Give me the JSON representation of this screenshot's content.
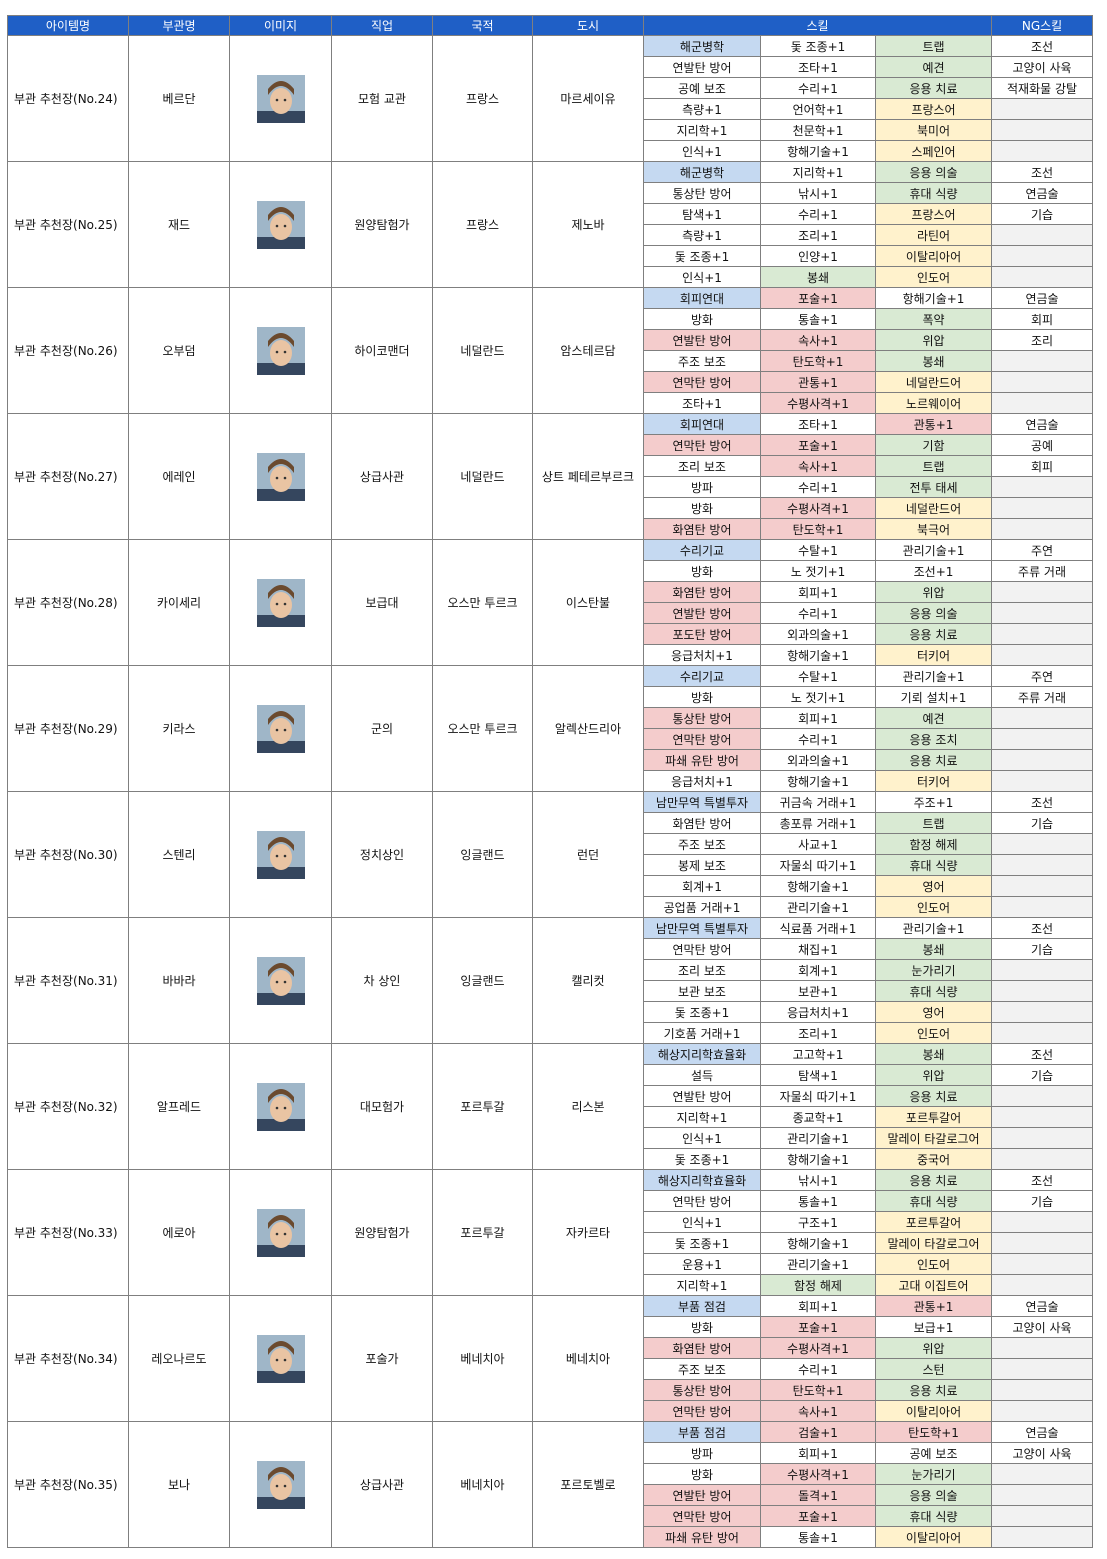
{
  "header": [
    "아이템명",
    "부관명",
    "이미지",
    "직업",
    "국적",
    "도시",
    "스킬",
    "NG스킬"
  ],
  "rows": [
    {
      "item": "부관 추천장(No.24)",
      "name": "베르단",
      "job": "모험 교관",
      "nation": "프랑스",
      "city": "마르세이유",
      "skills": [
        [
          {
            "text": "해군병학",
            "bg": "#c5d9f1"
          },
          "돛 조종+1",
          {
            "text": "트랩",
            "bg": "#d9ead3"
          }
        ],
        [
          "연발탄 방어",
          "조타+1",
          {
            "text": "예견",
            "bg": "#d9ead3"
          }
        ],
        [
          "공예 보조",
          "수리+1",
          {
            "text": "응용 치료",
            "bg": "#d9ead3"
          }
        ],
        [
          "측량+1",
          "언어학+1",
          {
            "text": "프랑스어",
            "bg": "#fff2cc"
          }
        ],
        [
          "지리학+1",
          "천문학+1",
          {
            "text": "북미어",
            "bg": "#fff2cc"
          }
        ],
        [
          "인식+1",
          "항해기술+1",
          {
            "text": "스페인어",
            "bg": "#fff2cc"
          }
        ]
      ],
      "ng": [
        "조선",
        "고양이 사육",
        "적재화물 강탈"
      ]
    },
    {
      "item": "부관 추천장(No.25)",
      "name": "재드",
      "job": "원양탐험가",
      "nation": "프랑스",
      "city": "제노바",
      "skills": [
        [
          {
            "text": "해군병학",
            "bg": "#c5d9f1"
          },
          "지리학+1",
          {
            "text": "응용 의술",
            "bg": "#d9ead3"
          }
        ],
        [
          "통상탄 방어",
          "낚시+1",
          {
            "text": "휴대 식량",
            "bg": "#d9ead3"
          }
        ],
        [
          "탐색+1",
          "수리+1",
          {
            "text": "프랑스어",
            "bg": "#fff2cc"
          }
        ],
        [
          "측량+1",
          "조리+1",
          {
            "text": "라틴어",
            "bg": "#fff2cc"
          }
        ],
        [
          "돛 조종+1",
          "인양+1",
          {
            "text": "이탈리아어",
            "bg": "#fff2cc"
          }
        ],
        [
          "인식+1",
          {
            "text": "봉쇄",
            "bg": "#d9ead3"
          },
          {
            "text": "인도어",
            "bg": "#fff2cc"
          }
        ]
      ],
      "ng": [
        "조선",
        "연금술",
        "기습"
      ]
    },
    {
      "item": "부관 추천장(No.26)",
      "name": "오부덤",
      "job": "하이코맨더",
      "nation": "네덜란드",
      "city": "암스테르담",
      "skills": [
        [
          {
            "text": "회피연대",
            "bg": "#c5d9f1"
          },
          {
            "text": "포술+1",
            "bg": "#f4cccc"
          },
          "항해기술+1"
        ],
        [
          "방화",
          "통솔+1",
          {
            "text": "폭약",
            "bg": "#d9ead3"
          }
        ],
        [
          {
            "text": "연발탄 방어",
            "bg": "#f4cccc"
          },
          {
            "text": "속사+1",
            "bg": "#f4cccc"
          },
          {
            "text": "위압",
            "bg": "#d9ead3"
          }
        ],
        [
          "주조 보조",
          {
            "text": "탄도학+1",
            "bg": "#f4cccc"
          },
          {
            "text": "봉쇄",
            "bg": "#d9ead3"
          }
        ],
        [
          {
            "text": "연막탄 방어",
            "bg": "#f4cccc"
          },
          {
            "text": "관통+1",
            "bg": "#f4cccc"
          },
          {
            "text": "네덜란드어",
            "bg": "#fff2cc"
          }
        ],
        [
          "조타+1",
          {
            "text": "수평사격+1",
            "bg": "#f4cccc"
          },
          {
            "text": "노르웨이어",
            "bg": "#fff2cc"
          }
        ]
      ],
      "ng": [
        "연금술",
        "회피",
        "조리"
      ]
    },
    {
      "item": "부관 추천장(No.27)",
      "name": "에레인",
      "job": "상급사관",
      "nation": "네덜란드",
      "city": "상트 페테르부르크",
      "skills": [
        [
          {
            "text": "회피연대",
            "bg": "#c5d9f1"
          },
          "조타+1",
          {
            "text": "관통+1",
            "bg": "#f4cccc"
          }
        ],
        [
          {
            "text": "연막탄 방어",
            "bg": "#f4cccc"
          },
          {
            "text": "포술+1",
            "bg": "#f4cccc"
          },
          {
            "text": "기함",
            "bg": "#d9ead3"
          }
        ],
        [
          "조리 보조",
          {
            "text": "속사+1",
            "bg": "#f4cccc"
          },
          {
            "text": "트랩",
            "bg": "#d9ead3"
          }
        ],
        [
          "방파",
          "수리+1",
          {
            "text": "전투 태세",
            "bg": "#d9ead3"
          }
        ],
        [
          "방화",
          {
            "text": "수평사격+1",
            "bg": "#f4cccc"
          },
          {
            "text": "네덜란드어",
            "bg": "#fff2cc"
          }
        ],
        [
          {
            "text": "화염탄 방어",
            "bg": "#f4cccc"
          },
          {
            "text": "탄도학+1",
            "bg": "#f4cccc"
          },
          {
            "text": "북극어",
            "bg": "#fff2cc"
          }
        ]
      ],
      "ng": [
        "연금술",
        "공예",
        "회피"
      ]
    },
    {
      "item": "부관 추천장(No.28)",
      "name": "카이세리",
      "job": "보급대",
      "nation": "오스만 투르크",
      "city": "이스탄불",
      "skills": [
        [
          {
            "text": "수리기교",
            "bg": "#c5d9f1"
          },
          "수탈+1",
          "관리기술+1"
        ],
        [
          "방화",
          "노 젓기+1",
          "조선+1"
        ],
        [
          {
            "text": "화염탄 방어",
            "bg": "#f4cccc"
          },
          "회피+1",
          {
            "text": "위압",
            "bg": "#d9ead3"
          }
        ],
        [
          {
            "text": "연발탄 방어",
            "bg": "#f4cccc"
          },
          "수리+1",
          {
            "text": "응용 의술",
            "bg": "#d9ead3"
          }
        ],
        [
          {
            "text": "포도탄 방어",
            "bg": "#f4cccc"
          },
          "외과의술+1",
          {
            "text": "응용 치료",
            "bg": "#d9ead3"
          }
        ],
        [
          "응급처치+1",
          "항해기술+1",
          {
            "text": "터키어",
            "bg": "#fff2cc"
          }
        ]
      ],
      "ng": [
        "주연",
        "주류 거래"
      ]
    },
    {
      "item": "부관 추천장(No.29)",
      "name": "키라스",
      "job": "군의",
      "nation": "오스만 투르크",
      "city": "알렉산드리아",
      "skills": [
        [
          {
            "text": "수리기교",
            "bg": "#c5d9f1"
          },
          "수탈+1",
          "관리기술+1"
        ],
        [
          "방화",
          "노 젓기+1",
          "기뢰 설치+1"
        ],
        [
          {
            "text": "통상탄 방어",
            "bg": "#f4cccc"
          },
          "회피+1",
          {
            "text": "예견",
            "bg": "#d9ead3"
          }
        ],
        [
          {
            "text": "연막탄 방어",
            "bg": "#f4cccc"
          },
          "수리+1",
          {
            "text": "응용 조치",
            "bg": "#d9ead3"
          }
        ],
        [
          {
            "text": "파쇄 유탄 방어",
            "bg": "#f4cccc"
          },
          "외과의술+1",
          {
            "text": "응용 치료",
            "bg": "#d9ead3"
          }
        ],
        [
          "응급처치+1",
          "항해기술+1",
          {
            "text": "터키어",
            "bg": "#fff2cc"
          }
        ]
      ],
      "ng": [
        "주연",
        "주류 거래"
      ]
    },
    {
      "item": "부관 추천장(No.30)",
      "name": "스텐리",
      "job": "정치상인",
      "nation": "잉글랜드",
      "city": "런던",
      "skills": [
        [
          {
            "text": "남만무역 특별투자",
            "bg": "#c5d9f1"
          },
          "귀금속 거래+1",
          "주조+1"
        ],
        [
          "화염탄 방어",
          "총포류 거래+1",
          {
            "text": "트랩",
            "bg": "#d9ead3"
          }
        ],
        [
          "주조 보조",
          "사교+1",
          {
            "text": "함정 해제",
            "bg": "#d9ead3"
          }
        ],
        [
          "봉제 보조",
          "자물쇠 따기+1",
          {
            "text": "휴대 식량",
            "bg": "#d9ead3"
          }
        ],
        [
          "회계+1",
          "항해기술+1",
          {
            "text": "영어",
            "bg": "#fff2cc"
          }
        ],
        [
          "공업품 거래+1",
          "관리기술+1",
          {
            "text": "인도어",
            "bg": "#fff2cc"
          }
        ]
      ],
      "ng": [
        "조선",
        "기습"
      ]
    },
    {
      "item": "부관 추천장(No.31)",
      "name": "바바라",
      "job": "차 상인",
      "nation": "잉글랜드",
      "city": "캘리컷",
      "skills": [
        [
          {
            "text": "남만무역 특별투자",
            "bg": "#c5d9f1"
          },
          "식료품 거래+1",
          "관리기술+1"
        ],
        [
          "연막탄 방어",
          "채집+1",
          {
            "text": "봉쇄",
            "bg": "#d9ead3"
          }
        ],
        [
          "조리 보조",
          "회계+1",
          {
            "text": "눈가리기",
            "bg": "#d9ead3"
          }
        ],
        [
          "보관 보조",
          "보관+1",
          {
            "text": "휴대 식량",
            "bg": "#d9ead3"
          }
        ],
        [
          "돛 조종+1",
          "응급처치+1",
          {
            "text": "영어",
            "bg": "#fff2cc"
          }
        ],
        [
          "기호품 거래+1",
          "조리+1",
          {
            "text": "인도어",
            "bg": "#fff2cc"
          }
        ]
      ],
      "ng": [
        "조선",
        "기습"
      ]
    },
    {
      "item": "부관 추천장(No.32)",
      "name": "알프레드",
      "job": "대모험가",
      "nation": "포르투갈",
      "city": "리스본",
      "skills": [
        [
          {
            "text": "해상지리학효율화",
            "bg": "#c5d9f1"
          },
          "고고학+1",
          {
            "text": "봉쇄",
            "bg": "#d9ead3"
          }
        ],
        [
          "설득",
          "탐색+1",
          {
            "text": "위압",
            "bg": "#d9ead3"
          }
        ],
        [
          "연발탄 방어",
          "자물쇠 따기+1",
          {
            "text": "응용 치료",
            "bg": "#d9ead3"
          }
        ],
        [
          "지리학+1",
          "종교학+1",
          {
            "text": "포르투갈어",
            "bg": "#fff2cc"
          }
        ],
        [
          "인식+1",
          "관리기술+1",
          {
            "text": "말레이 타갈로그어",
            "bg": "#fff2cc"
          }
        ],
        [
          "돛 조종+1",
          "항해기술+1",
          {
            "text": "중국어",
            "bg": "#fff2cc"
          }
        ]
      ],
      "ng": [
        "조선",
        "기습"
      ]
    },
    {
      "item": "부관 추천장(No.33)",
      "name": "에로아",
      "job": "원양탐험가",
      "nation": "포르투갈",
      "city": "자카르타",
      "skills": [
        [
          {
            "text": "해상지리학효율화",
            "bg": "#c5d9f1"
          },
          "낚시+1",
          {
            "text": "응용 치료",
            "bg": "#d9ead3"
          }
        ],
        [
          "연막탄 방어",
          "통솔+1",
          {
            "text": "휴대 식량",
            "bg": "#d9ead3"
          }
        ],
        [
          "인식+1",
          "구조+1",
          {
            "text": "포르투갈어",
            "bg": "#fff2cc"
          }
        ],
        [
          "돛 조종+1",
          "항해기술+1",
          {
            "text": "말레이 타갈로그어",
            "bg": "#fff2cc"
          }
        ],
        [
          "운용+1",
          "관리기술+1",
          {
            "text": "인도어",
            "bg": "#fff2cc"
          }
        ],
        [
          "지리학+1",
          {
            "text": "함정 해제",
            "bg": "#d9ead3"
          },
          {
            "text": "고대 이집트어",
            "bg": "#fff2cc"
          }
        ]
      ],
      "ng": [
        "조선",
        "기습"
      ]
    },
    {
      "item": "부관 추천장(No.34)",
      "name": "레오나르도",
      "job": "포술가",
      "nation": "베네치아",
      "city": "베네치아",
      "skills": [
        [
          {
            "text": "부품 점검",
            "bg": "#c5d9f1"
          },
          "회피+1",
          {
            "text": "관통+1",
            "bg": "#f4cccc"
          }
        ],
        [
          "방화",
          {
            "text": "포술+1",
            "bg": "#f4cccc"
          },
          "보급+1"
        ],
        [
          {
            "text": "화염탄 방어",
            "bg": "#f4cccc"
          },
          {
            "text": "수평사격+1",
            "bg": "#f4cccc"
          },
          {
            "text": "위압",
            "bg": "#d9ead3"
          }
        ],
        [
          "주조 보조",
          "수리+1",
          {
            "text": "스턴",
            "bg": "#d9ead3"
          }
        ],
        [
          {
            "text": "통상탄 방어",
            "bg": "#f4cccc"
          },
          {
            "text": "탄도학+1",
            "bg": "#f4cccc"
          },
          {
            "text": "응용 치료",
            "bg": "#d9ead3"
          }
        ],
        [
          {
            "text": "연막탄 방어",
            "bg": "#f4cccc"
          },
          {
            "text": "속사+1",
            "bg": "#f4cccc"
          },
          {
            "text": "이탈리아어",
            "bg": "#fff2cc"
          }
        ]
      ],
      "ng": [
        "연금술",
        "고양이 사육"
      ]
    },
    {
      "item": "부관 추천장(No.35)",
      "name": "보나",
      "job": "상급사관",
      "nation": "베네치아",
      "city": "포르토벨로",
      "skills": [
        [
          {
            "text": "부품 점검",
            "bg": "#c5d9f1"
          },
          {
            "text": "검술+1",
            "bg": "#f4cccc"
          },
          {
            "text": "탄도학+1",
            "bg": "#f4cccc"
          }
        ],
        [
          "방파",
          "회피+1",
          "공예 보조"
        ],
        [
          "방화",
          {
            "text": "수평사격+1",
            "bg": "#f4cccc"
          },
          {
            "text": "눈가리기",
            "bg": "#d9ead3"
          }
        ],
        [
          {
            "text": "연발탄 방어",
            "bg": "#f4cccc"
          },
          {
            "text": "돌격+1",
            "bg": "#f4cccc"
          },
          {
            "text": "응용 의술",
            "bg": "#d9ead3"
          }
        ],
        [
          {
            "text": "연막탄 방어",
            "bg": "#f4cccc"
          },
          {
            "text": "포술+1",
            "bg": "#f4cccc"
          },
          {
            "text": "휴대 식량",
            "bg": "#d9ead3"
          }
        ],
        [
          {
            "text": "파쇄 유탄 방어",
            "bg": "#f4cccc"
          },
          "통솔+1",
          {
            "text": "이탈리아어",
            "bg": "#fff2cc"
          }
        ]
      ],
      "ng": [
        "연금술",
        "고양이 사육"
      ]
    }
  ]
}
